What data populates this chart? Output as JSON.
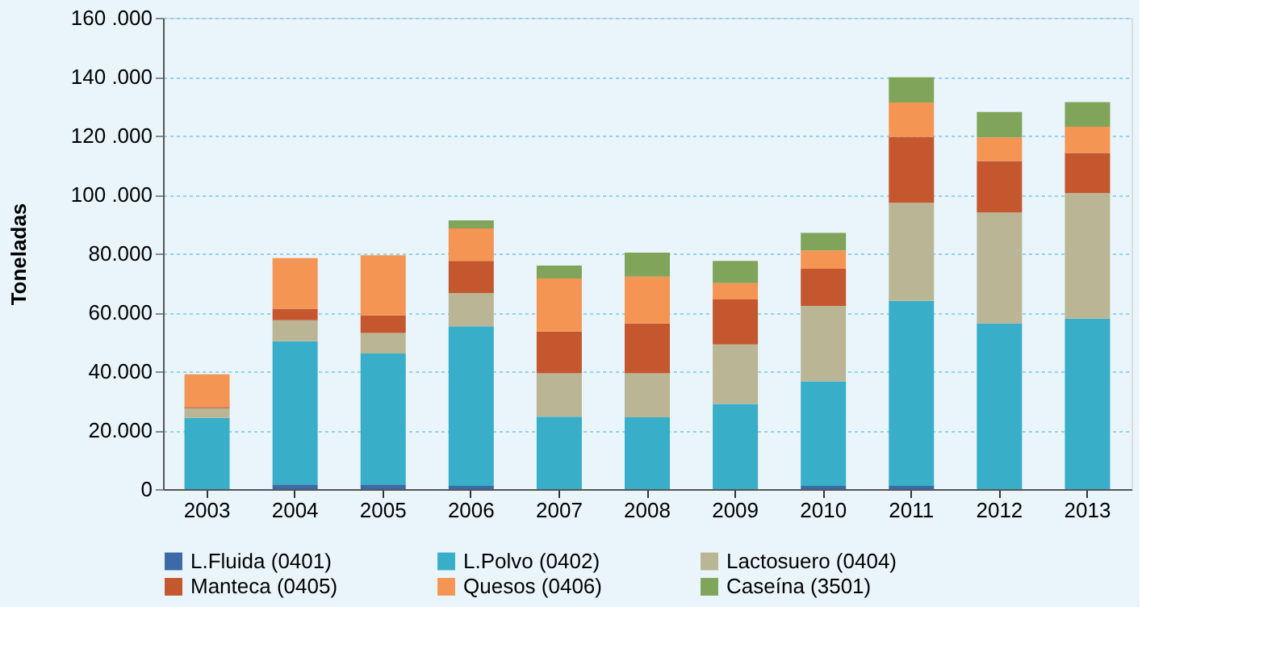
{
  "chart_data": {
    "type": "bar",
    "stacked": true,
    "ylabel": "Toneladas",
    "categories": [
      "2003",
      "2004",
      "2005",
      "2006",
      "2007",
      "2008",
      "2009",
      "2010",
      "2011",
      "2012",
      "2013"
    ],
    "series": [
      {
        "name": "L.Fluida (0401)",
        "color": "#3a6aa8",
        "values": [
          0,
          1600,
          1600,
          1100,
          0,
          0,
          0,
          1100,
          1100,
          0,
          0
        ]
      },
      {
        "name": "L.Polvo (0402)",
        "color": "#38aec8",
        "values": [
          24200,
          48600,
          44400,
          54200,
          24600,
          24400,
          28900,
          35500,
          62800,
          56200,
          57900
        ]
      },
      {
        "name": "Lactosuero (0404)",
        "color": "#bab594",
        "values": [
          3300,
          7100,
          7000,
          11300,
          14700,
          14900,
          20200,
          25600,
          33300,
          37700,
          42600
        ]
      },
      {
        "name": "Manteca (0405)",
        "color": "#c4572e",
        "values": [
          400,
          3900,
          6000,
          10900,
          14200,
          16900,
          15300,
          12600,
          22400,
          17500,
          13600
        ]
      },
      {
        "name": "Quesos (0406)",
        "color": "#f59553",
        "values": [
          11100,
          17200,
          20400,
          11000,
          18000,
          15900,
          5500,
          6200,
          11600,
          8000,
          8900
        ]
      },
      {
        "name": "Caseína (3501)",
        "color": "#80a55a",
        "values": [
          0,
          0,
          0,
          2700,
          4400,
          8200,
          7600,
          6000,
          8600,
          8600,
          8400
        ]
      }
    ],
    "ylim": [
      0,
      160000
    ],
    "yticks": [
      0,
      {
        "value": 20000,
        "label": "20.000"
      },
      {
        "value": 40000,
        "label": "40.000"
      },
      {
        "value": 60000,
        "label": "60.000"
      },
      {
        "value": 80000,
        "label": "80.000"
      },
      {
        "value": 100000,
        "label": "100 .000"
      },
      {
        "value": 120000,
        "label": "120 .000"
      },
      {
        "value": 140000,
        "label": "140 .000"
      },
      {
        "value": 160000,
        "label": "160 .000"
      }
    ],
    "grid": "y",
    "legend": "bottom"
  }
}
